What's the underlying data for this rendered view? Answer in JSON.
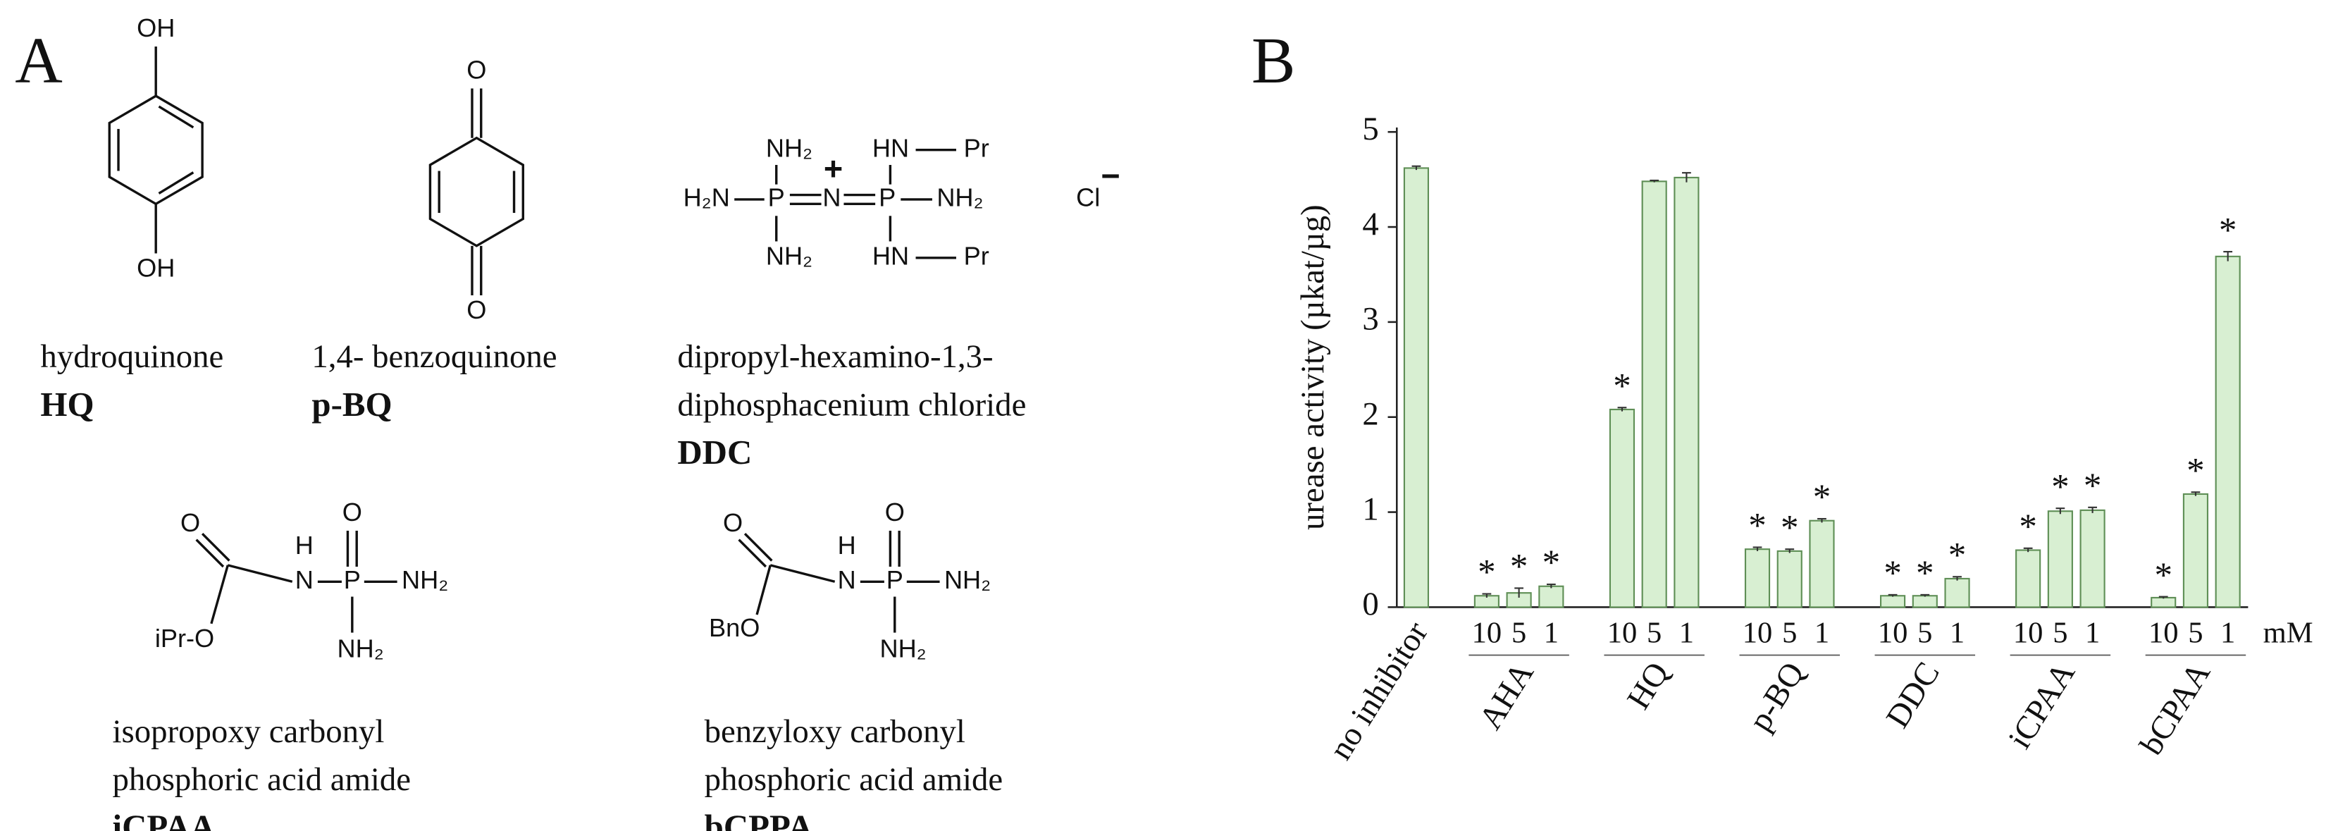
{
  "panel_a": {
    "label": "A",
    "compounds": [
      {
        "atoms": [
          "OH",
          "OH"
        ],
        "name_lines": [
          "hydroquinone"
        ],
        "abbr": "HQ"
      },
      {
        "atoms": [
          "O",
          "O"
        ],
        "name_lines": [
          "1,4- benzoquinone"
        ],
        "abbr": "p-BQ"
      },
      {
        "atoms": [
          "NH₂",
          "H₂N",
          "P",
          "N",
          "P",
          "NH₂",
          "NH₂",
          "HN",
          "Pr",
          "HN",
          "Pr",
          "+",
          "Cl",
          "−"
        ],
        "name_lines": [
          "dipropyl-hexamino-1,3-",
          "diphosphacenium chloride"
        ],
        "abbr": "DDC"
      },
      {
        "atoms": [
          "O",
          "H",
          "N",
          "O",
          "P",
          "NH₂",
          "iPr-O",
          "NH₂"
        ],
        "name_lines": [
          "isopropoxy carbonyl",
          "phosphoric acid amide"
        ],
        "abbr": "iCPAA"
      },
      {
        "atoms": [
          "O",
          "H",
          "N",
          "O",
          "P",
          "NH₂",
          "BnO",
          "NH₂"
        ],
        "name_lines": [
          "benzyloxy carbonyl",
          "phosphoric acid amide"
        ],
        "abbr": "bCPPA"
      }
    ]
  },
  "chart_data": {
    "panel_label": "B",
    "type": "bar",
    "y_label": "urease activity (µkat/µg)",
    "unit_label": "mM",
    "ylim": [
      0,
      5
    ],
    "yticks": [
      0,
      1,
      2,
      3,
      4,
      5
    ],
    "color": "#d8efd2",
    "edge_color": "#5f8f56",
    "groups": [
      {
        "label": "no inhibitor",
        "categories": [
          null
        ],
        "values": [
          4.62
        ],
        "errors": [
          0.02
        ],
        "significance": [
          null
        ]
      },
      {
        "label": "AHA",
        "categories": [
          "10",
          "5",
          "1"
        ],
        "values": [
          0.12,
          0.15,
          0.22
        ],
        "errors": [
          0.02,
          0.05,
          0.02
        ],
        "significance": [
          "*",
          "*",
          "*"
        ]
      },
      {
        "label": "HQ",
        "categories": [
          "10",
          "5",
          "1"
        ],
        "values": [
          2.08,
          4.48,
          4.52
        ],
        "errors": [
          0.02,
          0.01,
          0.05
        ],
        "significance": [
          "*",
          null,
          null
        ]
      },
      {
        "label": "p-BQ",
        "categories": [
          "10",
          "5",
          "1"
        ],
        "values": [
          0.61,
          0.59,
          0.91
        ],
        "errors": [
          0.02,
          0.02,
          0.02
        ],
        "significance": [
          "*",
          "*",
          "*"
        ]
      },
      {
        "label": "DDC",
        "categories": [
          "10",
          "5",
          "1"
        ],
        "values": [
          0.12,
          0.12,
          0.3
        ],
        "errors": [
          0.01,
          0.01,
          0.02
        ],
        "significance": [
          "*",
          "*",
          "*"
        ]
      },
      {
        "label": "iCPAA",
        "categories": [
          "10",
          "5",
          "1"
        ],
        "values": [
          0.6,
          1.01,
          1.02
        ],
        "errors": [
          0.02,
          0.03,
          0.03
        ],
        "significance": [
          "*",
          "*",
          "*"
        ]
      },
      {
        "label": "bCPAA",
        "categories": [
          "10",
          "5",
          "1"
        ],
        "values": [
          0.1,
          1.19,
          3.69
        ],
        "errors": [
          0.01,
          0.02,
          0.05
        ],
        "significance": [
          "*",
          "*",
          "*"
        ]
      }
    ]
  }
}
